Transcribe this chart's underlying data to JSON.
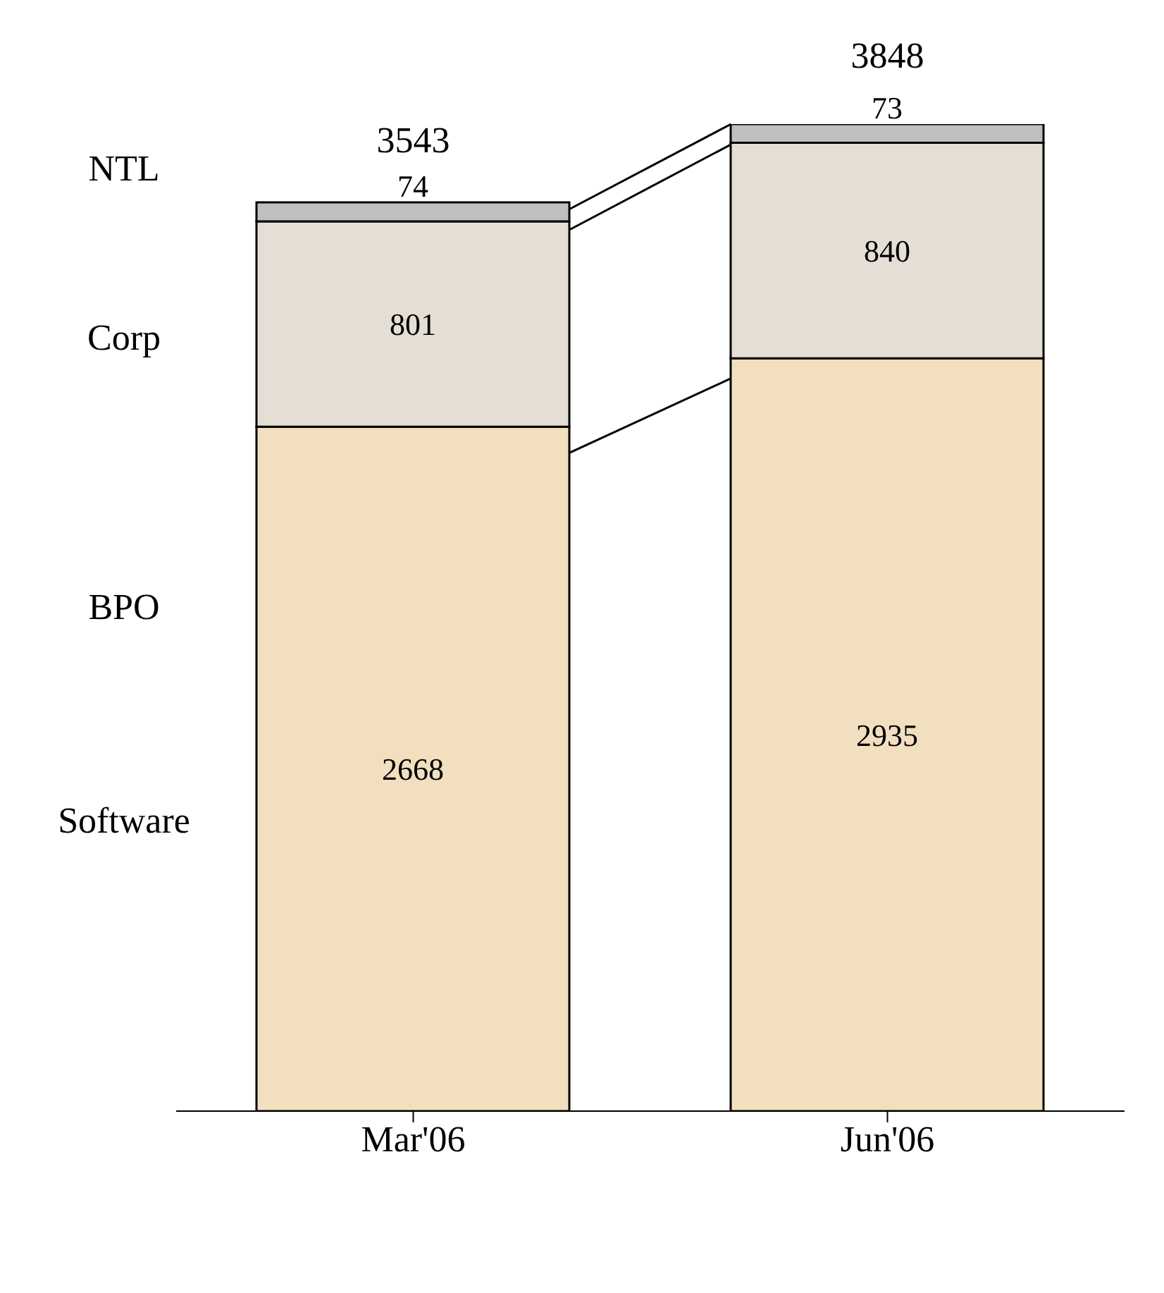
{
  "chart_data": {
    "type": "bar",
    "stacked": true,
    "categories": [
      "Mar'06",
      "Jun'06"
    ],
    "series": [
      {
        "name": "Software",
        "color": "#f1dfc0",
        "values": [
          2668,
          2935
        ]
      },
      {
        "name": "Corp",
        "color": "#e4ded4",
        "values": [
          801,
          840
        ]
      },
      {
        "name": "NTL",
        "color": "#bfbfbf",
        "values": [
          74,
          73
        ]
      }
    ],
    "data_labels": true,
    "totals": [
      "3543",
      "3848"
    ],
    "annotations": [
      "BPO"
    ]
  }
}
